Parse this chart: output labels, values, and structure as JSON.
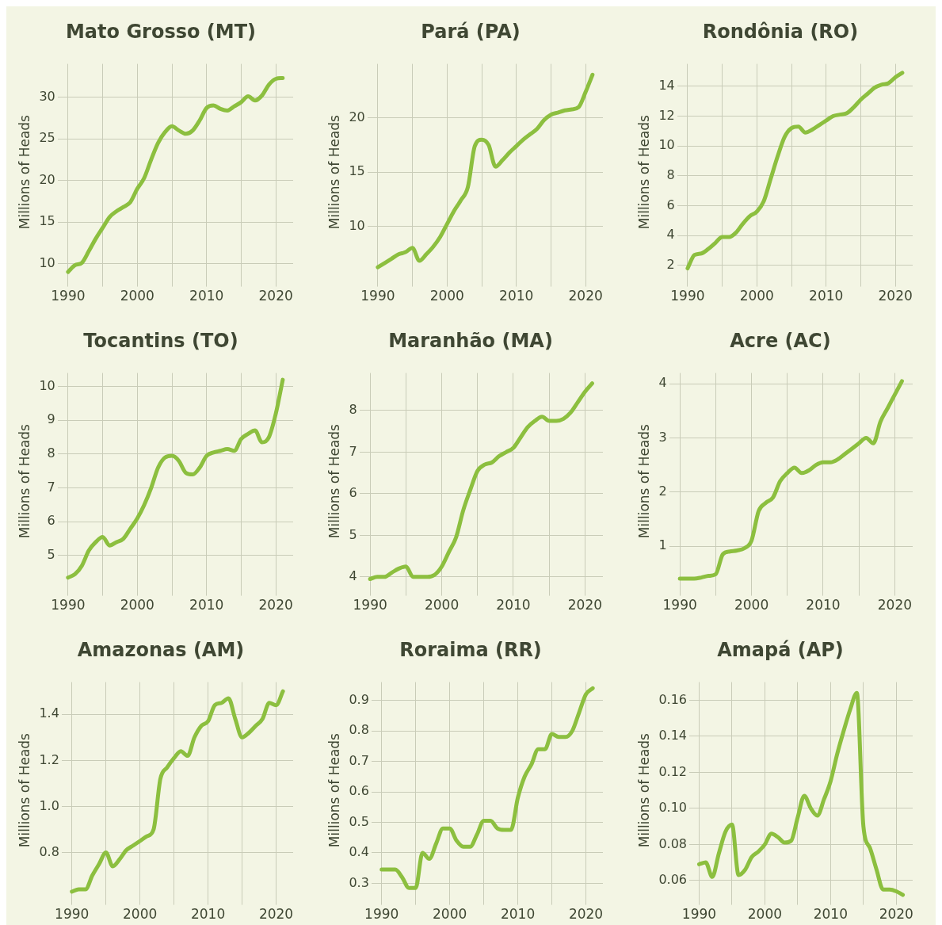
{
  "chart_data": [
    {
      "type": "line",
      "title": "Mato Grosso (MT)",
      "ylabel": "Millions of Heads",
      "x": [
        1990,
        1991,
        1992,
        1993,
        1994,
        1995,
        1996,
        1997,
        1998,
        1999,
        2000,
        2001,
        2002,
        2003,
        2004,
        2005,
        2006,
        2007,
        2008,
        2009,
        2010,
        2011,
        2012,
        2013,
        2014,
        2015,
        2016,
        2017,
        2018,
        2019,
        2020,
        2021
      ],
      "series": [
        {
          "color": "#8cbf3f",
          "values": [
            9.0,
            9.8,
            10.1,
            11.5,
            13,
            14.3,
            15.6,
            16.3,
            16.8,
            17.4,
            19.0,
            20.3,
            22.5,
            24.5,
            25.8,
            26.5,
            26.0,
            25.6,
            26.0,
            27.2,
            28.7,
            29.0,
            28.6,
            28.4,
            28.9,
            29.4,
            30.1,
            29.6,
            30.2,
            31.5,
            32.2,
            32.3
          ]
        }
      ],
      "xlim": [
        1988.5,
        2022.5
      ],
      "xticks": [
        1990,
        {
          "value": 1995,
          "label": null
        },
        2000,
        {
          "value": 2005,
          "label": null
        },
        2010,
        {
          "value": 2015,
          "label": null
        },
        2020
      ],
      "ylim": [
        8,
        34
      ],
      "yticks": [
        10,
        15,
        20,
        25,
        30
      ],
      "grid": true,
      "legend": false,
      "line_style": "solid"
    },
    {
      "type": "line",
      "title": "Pará (PA)",
      "ylabel": "Millions of Heads",
      "x": [
        1990,
        1991,
        1992,
        1993,
        1994,
        1995,
        1996,
        1997,
        1998,
        1999,
        2000,
        2001,
        2002,
        2003,
        2004,
        2005,
        2006,
        2007,
        2008,
        2009,
        2010,
        2011,
        2012,
        2013,
        2014,
        2015,
        2016,
        2017,
        2018,
        2019,
        2020,
        2021
      ],
      "series": [
        {
          "color": "#8cbf3f",
          "values": [
            6.2,
            6.6,
            7.0,
            7.4,
            7.6,
            8.0,
            6.8,
            7.4,
            8.1,
            9.0,
            10.2,
            11.4,
            12.4,
            13.6,
            17.4,
            18.0,
            17.5,
            15.5,
            16.1,
            16.8,
            17.4,
            18.0,
            18.5,
            19.0,
            19.8,
            20.3,
            20.5,
            20.7,
            20.8,
            21.0,
            22.4,
            24.0
          ]
        }
      ],
      "xlim": [
        1988.5,
        2022.5
      ],
      "xticks": [
        1990,
        {
          "value": 1995,
          "label": null
        },
        2000,
        {
          "value": 2005,
          "label": null
        },
        2010,
        {
          "value": 2015,
          "label": null
        },
        2020
      ],
      "ylim": [
        5,
        25
      ],
      "yticks": [
        10,
        15,
        20
      ],
      "grid": true,
      "legend": false,
      "line_style": "solid"
    },
    {
      "type": "line",
      "title": "Rondônia (RO)",
      "ylabel": "Millions of Heads",
      "x": [
        1990,
        1991,
        1992,
        1993,
        1994,
        1995,
        1996,
        1997,
        1998,
        1999,
        2000,
        2001,
        2002,
        2003,
        2004,
        2005,
        2006,
        2007,
        2008,
        2009,
        2010,
        2011,
        2012,
        2013,
        2014,
        2015,
        2016,
        2017,
        2018,
        2019,
        2020,
        2021
      ],
      "series": [
        {
          "color": "#8cbf3f",
          "values": [
            1.8,
            2.7,
            2.8,
            3.1,
            3.5,
            3.9,
            3.9,
            4.2,
            4.8,
            5.3,
            5.6,
            6.3,
            7.8,
            9.3,
            10.6,
            11.2,
            11.3,
            10.9,
            11.1,
            11.4,
            11.7,
            12.0,
            12.1,
            12.2,
            12.6,
            13.1,
            13.5,
            13.9,
            14.1,
            14.2,
            14.6,
            14.9
          ]
        }
      ],
      "xlim": [
        1988.5,
        2022.5
      ],
      "xticks": [
        1990,
        {
          "value": 1995,
          "label": null
        },
        2000,
        {
          "value": 2005,
          "label": null
        },
        2010,
        {
          "value": 2015,
          "label": null
        },
        2020
      ],
      "ylim": [
        1,
        15.5
      ],
      "yticks": [
        2,
        4,
        6,
        8,
        10,
        12,
        14
      ],
      "grid": true,
      "legend": false,
      "line_style": "solid"
    },
    {
      "type": "line",
      "title": "Tocantins (TO)",
      "ylabel": "Millions of Heads",
      "x": [
        1990,
        1991,
        1992,
        1993,
        1994,
        1995,
        1996,
        1997,
        1998,
        1999,
        2000,
        2001,
        2002,
        2003,
        2004,
        2005,
        2006,
        2007,
        2008,
        2009,
        2010,
        2011,
        2012,
        2013,
        2014,
        2015,
        2016,
        2017,
        2018,
        2019,
        2020,
        2021
      ],
      "series": [
        {
          "color": "#8cbf3f",
          "values": [
            4.35,
            4.45,
            4.7,
            5.15,
            5.4,
            5.55,
            5.3,
            5.4,
            5.5,
            5.8,
            6.1,
            6.5,
            7.0,
            7.6,
            7.9,
            7.95,
            7.8,
            7.45,
            7.4,
            7.6,
            7.95,
            8.05,
            8.1,
            8.15,
            8.1,
            8.45,
            8.6,
            8.7,
            8.35,
            8.5,
            9.2,
            10.2
          ]
        }
      ],
      "xlim": [
        1988.5,
        2022.5
      ],
      "xticks": [
        1990,
        {
          "value": 1995,
          "label": null
        },
        2000,
        {
          "value": 2005,
          "label": null
        },
        2010,
        {
          "value": 2015,
          "label": null
        },
        2020
      ],
      "ylim": [
        4,
        10.4
      ],
      "yticks": [
        5,
        6,
        7,
        8,
        9,
        10
      ],
      "grid": true,
      "legend": false,
      "line_style": "solid"
    },
    {
      "type": "line",
      "title": "Maranhão (MA)",
      "ylabel": "Millions of Heads",
      "x": [
        1990,
        1991,
        1992,
        1993,
        1994,
        1995,
        1996,
        1997,
        1998,
        1999,
        2000,
        2001,
        2002,
        2003,
        2004,
        2005,
        2006,
        2007,
        2008,
        2009,
        2010,
        2011,
        2012,
        2013,
        2014,
        2015,
        2016,
        2017,
        2018,
        2019,
        2020,
        2021
      ],
      "series": [
        {
          "color": "#8cbf3f",
          "values": [
            3.95,
            4.0,
            4.0,
            4.1,
            4.2,
            4.25,
            4.0,
            4.0,
            4.0,
            4.05,
            4.25,
            4.6,
            4.95,
            5.6,
            6.1,
            6.55,
            6.7,
            6.75,
            6.9,
            7.0,
            7.1,
            7.35,
            7.6,
            7.75,
            7.85,
            7.75,
            7.75,
            7.8,
            7.95,
            8.2,
            8.45,
            8.65
          ]
        }
      ],
      "xlim": [
        1988.5,
        2022.5
      ],
      "xticks": [
        1990,
        {
          "value": 1995,
          "label": null
        },
        2000,
        {
          "value": 2005,
          "label": null
        },
        2010,
        {
          "value": 2015,
          "label": null
        },
        2020
      ],
      "ylim": [
        3.7,
        8.9
      ],
      "yticks": [
        4,
        5,
        6,
        7,
        8
      ],
      "grid": true,
      "legend": false,
      "line_style": "solid"
    },
    {
      "type": "line",
      "title": "Acre (AC)",
      "ylabel": "Millions of Heads",
      "x": [
        1990,
        1991,
        1992,
        1993,
        1994,
        1995,
        1996,
        1997,
        1998,
        1999,
        2000,
        2001,
        2002,
        2003,
        2004,
        2005,
        2006,
        2007,
        2008,
        2009,
        2010,
        2011,
        2012,
        2013,
        2014,
        2015,
        2016,
        2017,
        2018,
        2019,
        2020,
        2021
      ],
      "series": [
        {
          "color": "#8cbf3f",
          "values": [
            0.4,
            0.4,
            0.4,
            0.42,
            0.45,
            0.48,
            0.85,
            0.9,
            0.92,
            0.96,
            1.1,
            1.65,
            1.8,
            1.9,
            2.2,
            2.35,
            2.45,
            2.35,
            2.4,
            2.5,
            2.55,
            2.55,
            2.6,
            2.7,
            2.8,
            2.9,
            3.0,
            2.9,
            3.3,
            3.55,
            3.8,
            4.05
          ]
        }
      ],
      "xlim": [
        1988.5,
        2022.5
      ],
      "xticks": [
        1990,
        {
          "value": 1995,
          "label": null
        },
        2000,
        {
          "value": 2005,
          "label": null
        },
        2010,
        {
          "value": 2015,
          "label": null
        },
        2020
      ],
      "ylim": [
        0.2,
        4.2
      ],
      "yticks": [
        1,
        2,
        3,
        4
      ],
      "grid": true,
      "legend": false,
      "line_style": "solid"
    },
    {
      "type": "line",
      "title": "Amazonas (AM)",
      "ylabel": "Millions of Heads",
      "x": [
        1990,
        1991,
        1992,
        1993,
        1994,
        1995,
        1996,
        1997,
        1998,
        1999,
        2000,
        2001,
        2002,
        2003,
        2004,
        2005,
        2006,
        2007,
        2008,
        2009,
        2010,
        2011,
        2012,
        2013,
        2014,
        2015,
        2016,
        2017,
        2018,
        2019,
        2020,
        2021
      ],
      "series": [
        {
          "color": "#8cbf3f",
          "values": [
            0.63,
            0.64,
            0.64,
            0.7,
            0.75,
            0.8,
            0.74,
            0.77,
            0.81,
            0.83,
            0.85,
            0.87,
            0.9,
            1.12,
            1.17,
            1.21,
            1.24,
            1.22,
            1.3,
            1.35,
            1.37,
            1.44,
            1.45,
            1.47,
            1.38,
            1.3,
            1.32,
            1.35,
            1.38,
            1.45,
            1.44,
            1.5
          ]
        }
      ],
      "xlim": [
        1988.5,
        2022.5
      ],
      "xticks": [
        1990,
        {
          "value": 1995,
          "label": null
        },
        2000,
        {
          "value": 2005,
          "label": null
        },
        2010,
        {
          "value": 2015,
          "label": null
        },
        2020
      ],
      "ylim": [
        0.6,
        1.54
      ],
      "yticks": [
        0.8,
        {
          "value": 1,
          "label": "1.0"
        },
        1.2,
        1.4
      ],
      "grid": true,
      "legend": false,
      "line_style": "solid"
    },
    {
      "type": "line",
      "title": "Roraima (RR)",
      "ylabel": "Millions of Heads",
      "x": [
        1990,
        1991,
        1992,
        1993,
        1994,
        1995,
        1996,
        1997,
        1998,
        1999,
        2000,
        2001,
        2002,
        2003,
        2004,
        2005,
        2006,
        2007,
        2008,
        2009,
        2010,
        2011,
        2012,
        2013,
        2014,
        2015,
        2016,
        2017,
        2018,
        2019,
        2020,
        2021
      ],
      "series": [
        {
          "color": "#8cbf3f",
          "values": [
            0.345,
            0.345,
            0.345,
            0.32,
            0.285,
            0.285,
            0.4,
            0.38,
            0.43,
            0.48,
            0.48,
            0.44,
            0.42,
            0.42,
            0.46,
            0.505,
            0.505,
            0.48,
            0.475,
            0.475,
            0.58,
            0.65,
            0.69,
            0.74,
            0.74,
            0.79,
            0.78,
            0.78,
            0.8,
            0.86,
            0.92,
            0.94
          ]
        }
      ],
      "xlim": [
        1988.5,
        2022.5
      ],
      "xticks": [
        1990,
        {
          "value": 1995,
          "label": null
        },
        2000,
        {
          "value": 2005,
          "label": null
        },
        2010,
        {
          "value": 2015,
          "label": null
        },
        2020
      ],
      "ylim": [
        0.25,
        0.96
      ],
      "yticks": [
        0.3,
        0.4,
        0.5,
        0.6,
        0.7,
        0.8,
        0.9
      ],
      "grid": true,
      "legend": false,
      "line_style": "solid"
    },
    {
      "type": "line",
      "title": "Amapá (AP)",
      "ylabel": "Millions of Heads",
      "x": [
        1990,
        1991,
        1992,
        1993,
        1994,
        1995,
        1996,
        1997,
        1998,
        1999,
        2000,
        2001,
        2002,
        2003,
        2004,
        2005,
        2006,
        2007,
        2008,
        2009,
        2010,
        2011,
        2012,
        2013,
        2014,
        2015,
        2016,
        2017,
        2018,
        2019,
        2020,
        2021
      ],
      "series": [
        {
          "color": "#8cbf3f",
          "values": [
            0.069,
            0.07,
            0.062,
            0.075,
            0.087,
            0.091,
            0.063,
            0.066,
            0.073,
            0.076,
            0.08,
            0.086,
            0.084,
            0.081,
            0.082,
            0.095,
            0.107,
            0.1,
            0.096,
            0.105,
            0.115,
            0.13,
            0.143,
            0.155,
            0.164,
            0.09,
            0.078,
            0.066,
            0.055,
            0.055,
            0.054,
            0.052
          ]
        }
      ],
      "xlim": [
        1988.5,
        2022.5
      ],
      "xticks": [
        1990,
        {
          "value": 1995,
          "label": null
        },
        2000,
        {
          "value": 2005,
          "label": null
        },
        2010,
        {
          "value": 2015,
          "label": null
        },
        2020
      ],
      "ylim": [
        0.05,
        0.17
      ],
      "yticks": [
        0.06,
        0.08,
        {
          "value": 0.1,
          "label": "0.10"
        },
        0.12,
        0.14,
        0.16
      ],
      "grid": true,
      "legend": false,
      "line_style": "solid"
    }
  ]
}
